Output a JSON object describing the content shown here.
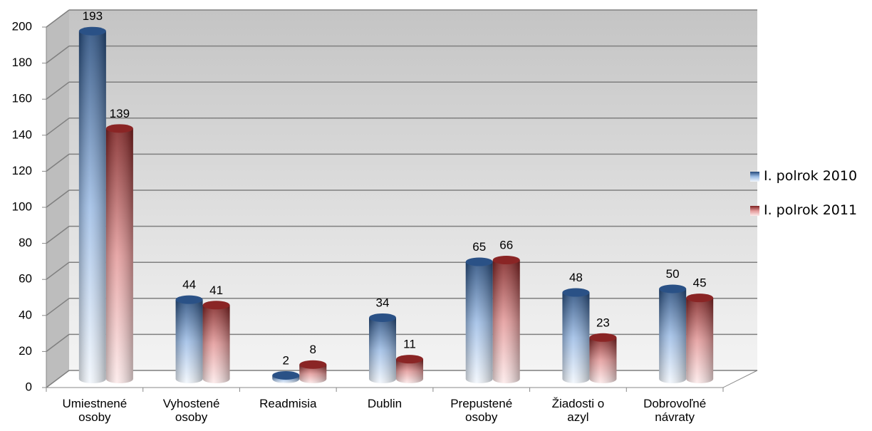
{
  "chart_data": {
    "type": "bar",
    "style": "3d-cylinder",
    "categories": [
      "Umiestnené\nosoby",
      "Vyhostené\nosoby",
      "Readmisia",
      "Dublin",
      "Prepustené\nosoby",
      "Žiadosti o\nazyl",
      "Dobrovoľné\nnávraty"
    ],
    "series": [
      {
        "name": "I. polrok 2010",
        "color": "#2a5186",
        "values": [
          193,
          44,
          2,
          34,
          65,
          48,
          50
        ]
      },
      {
        "name": "I. polrok 2011",
        "color": "#8a2525",
        "values": [
          139,
          41,
          8,
          11,
          66,
          23,
          45
        ]
      }
    ],
    "ylim": [
      0,
      200
    ],
    "yticks": [
      0,
      20,
      40,
      60,
      80,
      100,
      120,
      140,
      160,
      180,
      200
    ],
    "grid": true,
    "legend": "right"
  }
}
